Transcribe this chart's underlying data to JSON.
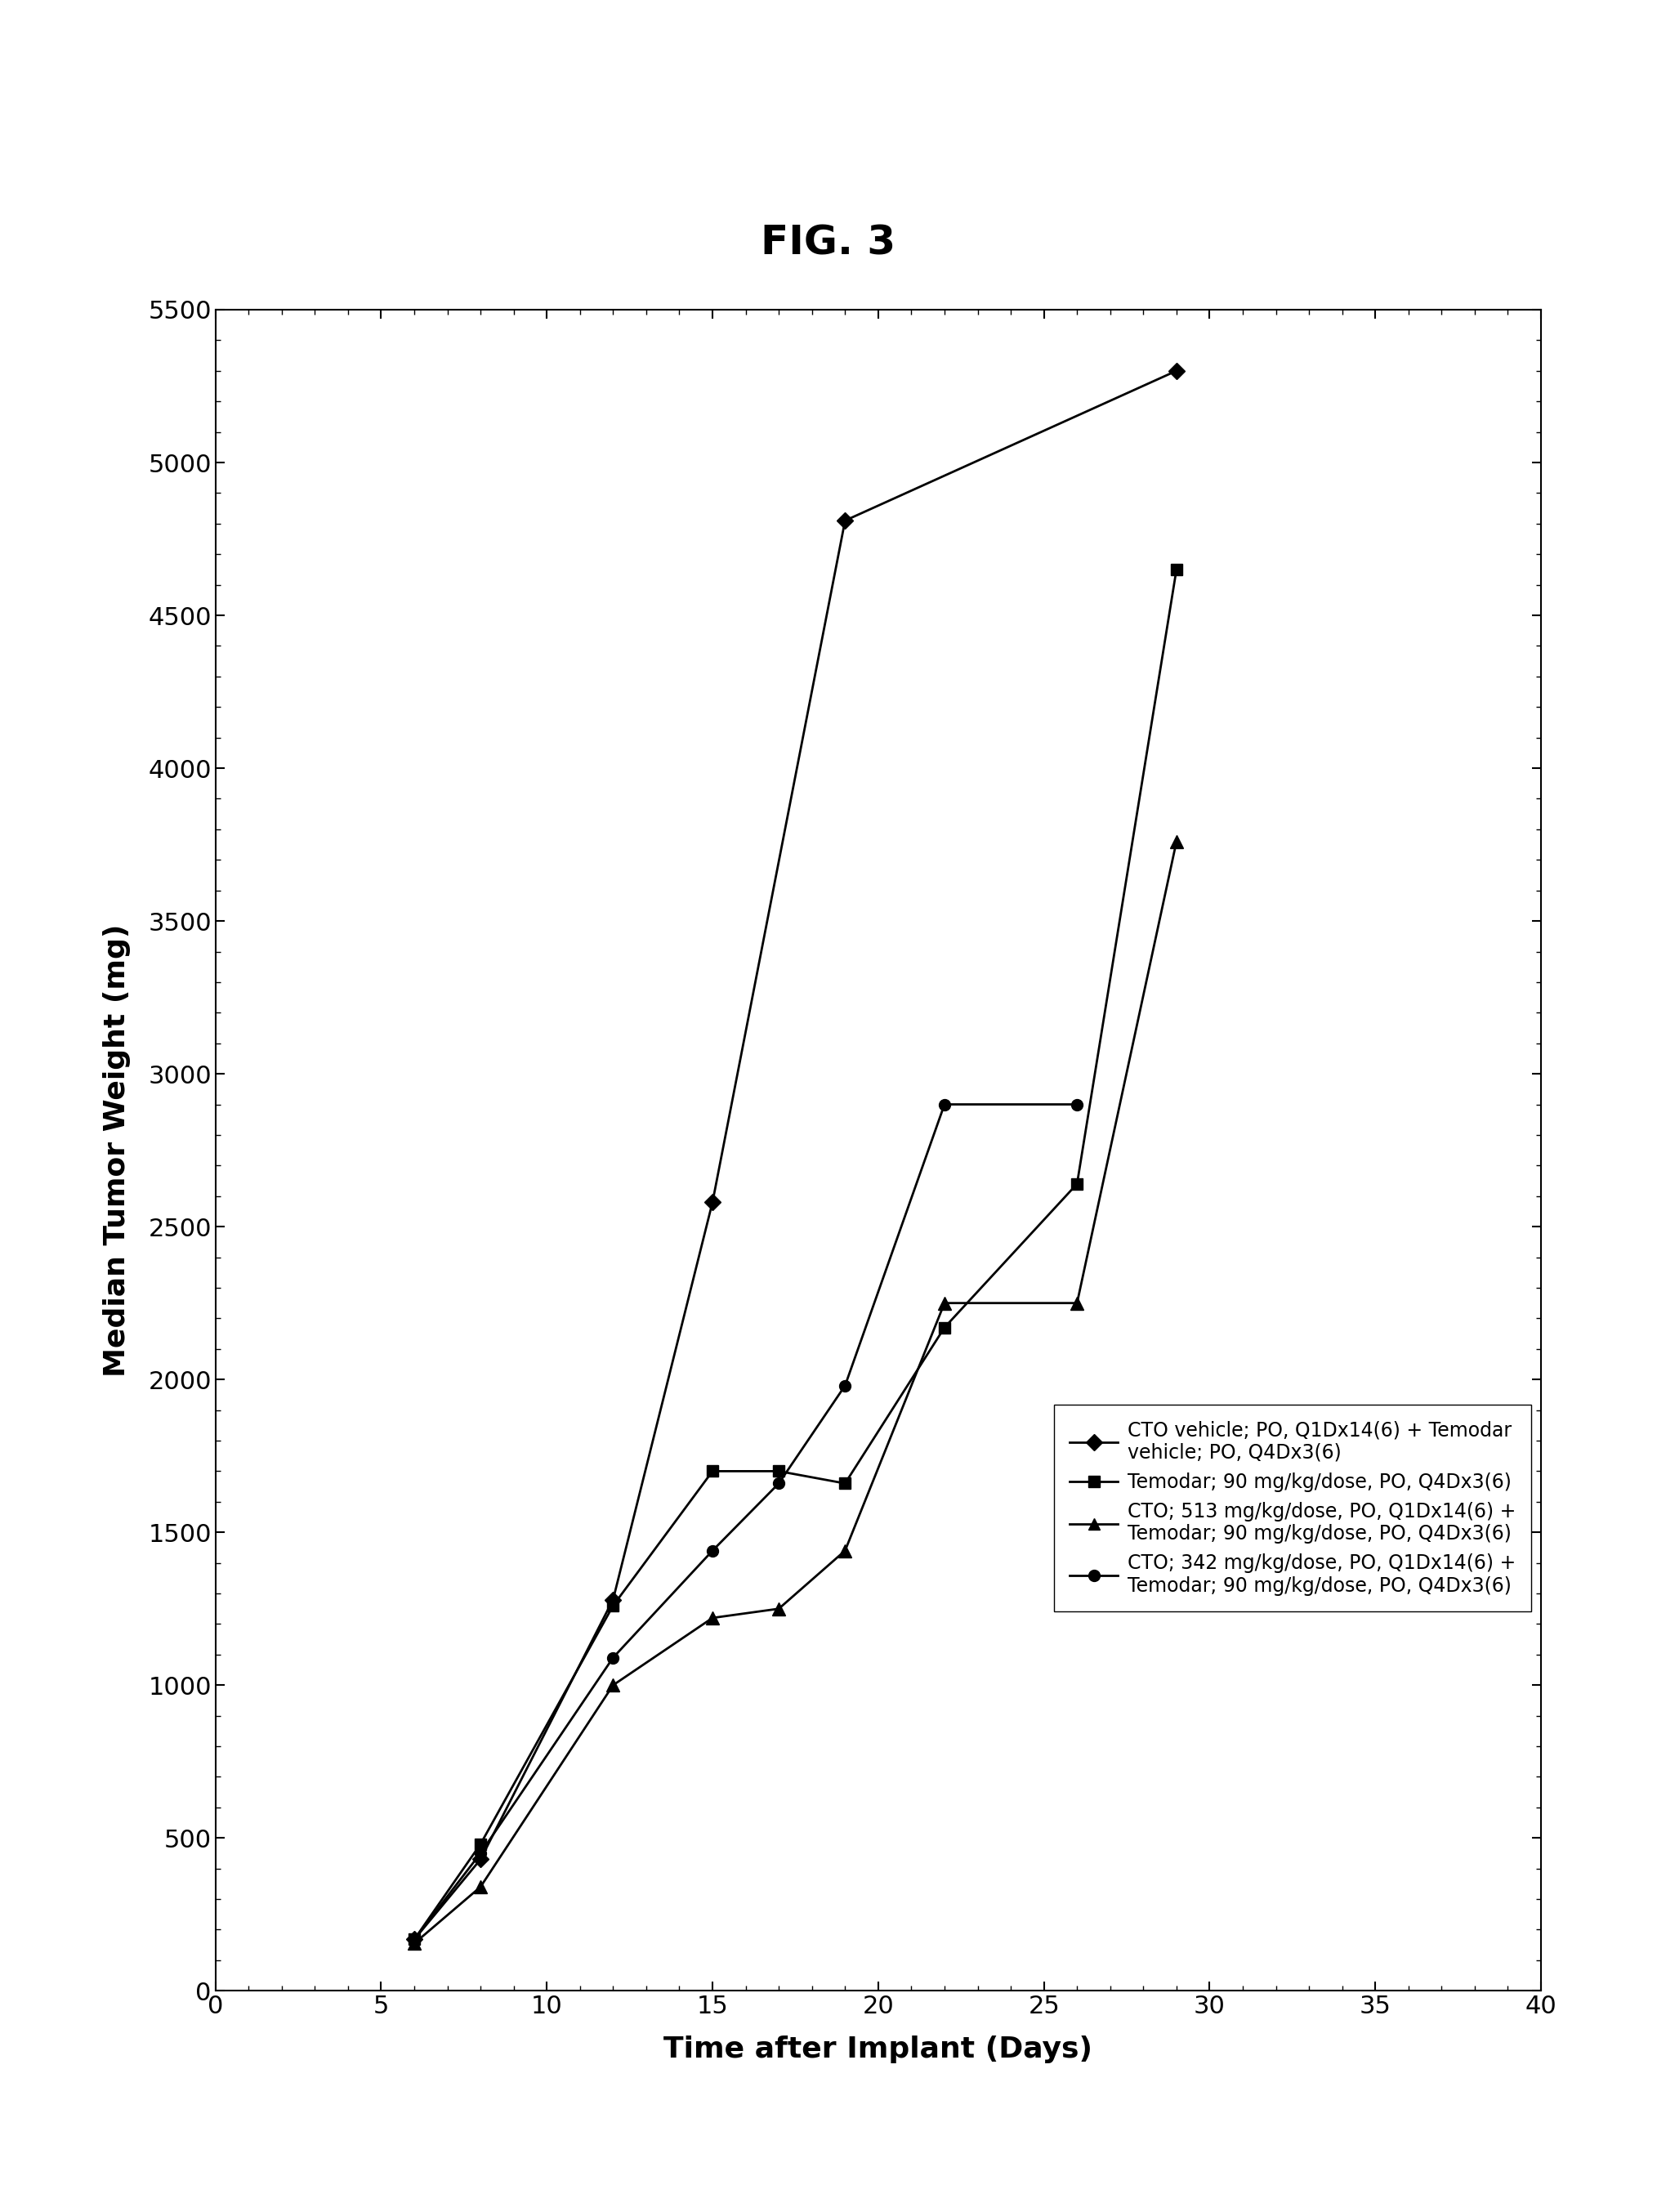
{
  "title": "FIG. 3",
  "xlabel": "Time after Implant (Days)",
  "ylabel": "Median Tumor Weight (mg)",
  "xlim": [
    0,
    40
  ],
  "ylim": [
    0,
    5500
  ],
  "xticks": [
    0,
    5,
    10,
    15,
    20,
    25,
    30,
    35,
    40
  ],
  "yticks": [
    0,
    500,
    1000,
    1500,
    2000,
    2500,
    3000,
    3500,
    4000,
    4500,
    5000,
    5500
  ],
  "series": [
    {
      "label": "CTO vehicle; PO, Q1Dx14(6) + Temodar\nvehicle; PO, Q4Dx3(6)",
      "x": [
        6,
        8,
        12,
        15,
        19,
        29
      ],
      "y": [
        168,
        430,
        1280,
        2580,
        4810,
        5300
      ],
      "marker": "D",
      "markersize": 10,
      "color": "#000000",
      "linewidth": 2.0
    },
    {
      "label": "Temodar; 90 mg/kg/dose, PO, Q4Dx3(6)",
      "x": [
        6,
        8,
        12,
        15,
        17,
        19,
        22,
        26,
        29
      ],
      "y": [
        168,
        480,
        1260,
        1700,
        1700,
        1660,
        2170,
        2640,
        4650
      ],
      "marker": "s",
      "markersize": 10,
      "color": "#000000",
      "linewidth": 2.0
    },
    {
      "label": "CTO; 513 mg/kg/dose, PO, Q1Dx14(6) +\nTemodar; 90 mg/kg/dose, PO, Q4Dx3(6)",
      "x": [
        6,
        8,
        12,
        15,
        17,
        19,
        22,
        26,
        29
      ],
      "y": [
        155,
        340,
        1000,
        1220,
        1250,
        1440,
        2250,
        2250,
        3760
      ],
      "marker": "^",
      "markersize": 11,
      "color": "#000000",
      "linewidth": 2.0
    },
    {
      "label": "CTO; 342 mg/kg/dose, PO, Q1Dx14(6) +\nTemodar; 90 mg/kg/dose, PO, Q4Dx3(6)",
      "x": [
        6,
        8,
        12,
        15,
        17,
        19,
        22,
        26
      ],
      "y": [
        168,
        450,
        1090,
        1440,
        1660,
        1980,
        2900,
        2900
      ],
      "marker": "o",
      "markersize": 10,
      "color": "#000000",
      "linewidth": 2.0
    }
  ],
  "legend_labels": [
    "CTO vehicle; PO, Q1Dx14(6) + Temodar\nvehicle; PO, Q4Dx3(6)",
    "Temodar; 90 mg/kg/dose, PO, Q4Dx3(6)",
    "CTO; 513 mg/kg/dose, PO, Q1Dx14(6) +\nTemodar; 90 mg/kg/dose, PO, Q4Dx3(6)",
    "CTO; 342 mg/kg/dose, PO, Q1Dx14(6) +\nTemodar; 90 mg/kg/dose, PO, Q4Dx3(6)"
  ],
  "background_color": "#ffffff",
  "fig_width": 20.28,
  "fig_height": 27.07,
  "title_fontsize": 36,
  "axis_label_fontsize": 26,
  "tick_labelsize": 22
}
